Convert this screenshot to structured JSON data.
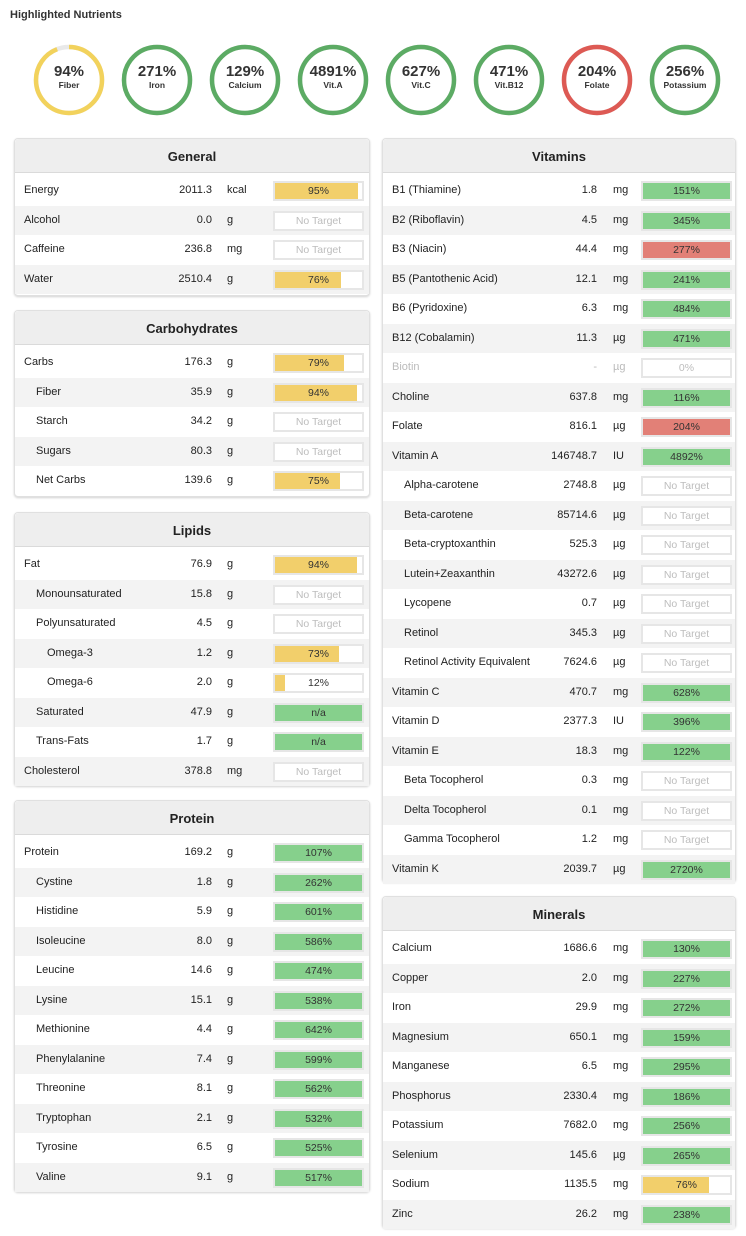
{
  "header": {
    "title": "Highlighted Nutrients"
  },
  "colors": {
    "yellow": "#f2cf6b",
    "green": "#86d08c",
    "red": "#e28077",
    "ring_yellow": "#f2d25c",
    "ring_green": "#5cab64",
    "ring_red": "#dd5a54"
  },
  "rings": [
    {
      "pct": "94%",
      "label": "Fiber",
      "level": 0.94,
      "color": "yellow"
    },
    {
      "pct": "271%",
      "label": "Iron",
      "level": 1,
      "color": "green"
    },
    {
      "pct": "129%",
      "label": "Calcium",
      "level": 1,
      "color": "green"
    },
    {
      "pct": "4891%",
      "label": "Vit.A",
      "level": 1,
      "color": "green"
    },
    {
      "pct": "627%",
      "label": "Vit.C",
      "level": 1,
      "color": "green"
    },
    {
      "pct": "471%",
      "label": "Vit.B12",
      "level": 1,
      "color": "green"
    },
    {
      "pct": "204%",
      "label": "Folate",
      "level": 1,
      "color": "red"
    },
    {
      "pct": "256%",
      "label": "Potassium",
      "level": 1,
      "color": "green"
    }
  ],
  "panels": {
    "general": {
      "title": "General",
      "rows": [
        {
          "name": "Energy",
          "value": "2011.3",
          "unit": "kcal",
          "bar": "95%",
          "level": 0.95,
          "color": "yellow"
        },
        {
          "name": "Alcohol",
          "value": "0.0",
          "unit": "g",
          "bar": "No Target",
          "level": 0,
          "color": "none"
        },
        {
          "name": "Caffeine",
          "value": "236.8",
          "unit": "mg",
          "bar": "No Target",
          "level": 0,
          "color": "none"
        },
        {
          "name": "Water",
          "value": "2510.4",
          "unit": "g",
          "bar": "76%",
          "level": 0.76,
          "color": "yellow"
        }
      ]
    },
    "carbohydrates": {
      "title": "Carbohydrates",
      "rows": [
        {
          "name": "Carbs",
          "value": "176.3",
          "unit": "g",
          "bar": "79%",
          "level": 0.79,
          "color": "yellow"
        },
        {
          "name": "Fiber",
          "value": "35.9",
          "unit": "g",
          "bar": "94%",
          "level": 0.94,
          "color": "yellow",
          "indent": 1
        },
        {
          "name": "Starch",
          "value": "34.2",
          "unit": "g",
          "bar": "No Target",
          "level": 0,
          "color": "none",
          "indent": 1
        },
        {
          "name": "Sugars",
          "value": "80.3",
          "unit": "g",
          "bar": "No Target",
          "level": 0,
          "color": "none",
          "indent": 1
        },
        {
          "name": "Net Carbs",
          "value": "139.6",
          "unit": "g",
          "bar": "75%",
          "level": 0.75,
          "color": "yellow",
          "indent": 1
        }
      ]
    },
    "lipids": {
      "title": "Lipids",
      "rows": [
        {
          "name": "Fat",
          "value": "76.9",
          "unit": "g",
          "bar": "94%",
          "level": 0.94,
          "color": "yellow"
        },
        {
          "name": "Monounsaturated",
          "value": "15.8",
          "unit": "g",
          "bar": "No Target",
          "level": 0,
          "color": "none",
          "indent": 1
        },
        {
          "name": "Polyunsaturated",
          "value": "4.5",
          "unit": "g",
          "bar": "No Target",
          "level": 0,
          "color": "none",
          "indent": 1
        },
        {
          "name": "Omega-3",
          "value": "1.2",
          "unit": "g",
          "bar": "73%",
          "level": 0.73,
          "color": "yellow",
          "indent": 2
        },
        {
          "name": "Omega-6",
          "value": "2.0",
          "unit": "g",
          "bar": "12%",
          "level": 0.12,
          "color": "yellow",
          "indent": 2
        },
        {
          "name": "Saturated",
          "value": "47.9",
          "unit": "g",
          "bar": "n/a",
          "level": 1,
          "color": "green",
          "indent": 1
        },
        {
          "name": "Trans-Fats",
          "value": "1.7",
          "unit": "g",
          "bar": "n/a",
          "level": 1,
          "color": "green",
          "indent": 1
        },
        {
          "name": "Cholesterol",
          "value": "378.8",
          "unit": "mg",
          "bar": "No Target",
          "level": 0,
          "color": "none"
        }
      ]
    },
    "protein": {
      "title": "Protein",
      "rows": [
        {
          "name": "Protein",
          "value": "169.2",
          "unit": "g",
          "bar": "107%",
          "level": 1,
          "color": "green"
        },
        {
          "name": "Cystine",
          "value": "1.8",
          "unit": "g",
          "bar": "262%",
          "level": 1,
          "color": "green",
          "indent": 1
        },
        {
          "name": "Histidine",
          "value": "5.9",
          "unit": "g",
          "bar": "601%",
          "level": 1,
          "color": "green",
          "indent": 1
        },
        {
          "name": "Isoleucine",
          "value": "8.0",
          "unit": "g",
          "bar": "586%",
          "level": 1,
          "color": "green",
          "indent": 1
        },
        {
          "name": "Leucine",
          "value": "14.6",
          "unit": "g",
          "bar": "474%",
          "level": 1,
          "color": "green",
          "indent": 1
        },
        {
          "name": "Lysine",
          "value": "15.1",
          "unit": "g",
          "bar": "538%",
          "level": 1,
          "color": "green",
          "indent": 1
        },
        {
          "name": "Methionine",
          "value": "4.4",
          "unit": "g",
          "bar": "642%",
          "level": 1,
          "color": "green",
          "indent": 1
        },
        {
          "name": "Phenylalanine",
          "value": "7.4",
          "unit": "g",
          "bar": "599%",
          "level": 1,
          "color": "green",
          "indent": 1
        },
        {
          "name": "Threonine",
          "value": "8.1",
          "unit": "g",
          "bar": "562%",
          "level": 1,
          "color": "green",
          "indent": 1
        },
        {
          "name": "Tryptophan",
          "value": "2.1",
          "unit": "g",
          "bar": "532%",
          "level": 1,
          "color": "green",
          "indent": 1
        },
        {
          "name": "Tyrosine",
          "value": "6.5",
          "unit": "g",
          "bar": "525%",
          "level": 1,
          "color": "green",
          "indent": 1
        },
        {
          "name": "Valine",
          "value": "9.1",
          "unit": "g",
          "bar": "517%",
          "level": 1,
          "color": "green",
          "indent": 1
        }
      ]
    },
    "vitamins": {
      "title": "Vitamins",
      "rows": [
        {
          "name": "B1 (Thiamine)",
          "value": "1.8",
          "unit": "mg",
          "bar": "151%",
          "level": 1,
          "color": "green"
        },
        {
          "name": "B2 (Riboflavin)",
          "value": "4.5",
          "unit": "mg",
          "bar": "345%",
          "level": 1,
          "color": "green"
        },
        {
          "name": "B3 (Niacin)",
          "value": "44.4",
          "unit": "mg",
          "bar": "277%",
          "level": 1,
          "color": "red"
        },
        {
          "name": "B5 (Pantothenic Acid)",
          "value": "12.1",
          "unit": "mg",
          "bar": "241%",
          "level": 1,
          "color": "green"
        },
        {
          "name": "B6 (Pyridoxine)",
          "value": "6.3",
          "unit": "mg",
          "bar": "484%",
          "level": 1,
          "color": "green"
        },
        {
          "name": "B12 (Cobalamin)",
          "value": "11.3",
          "unit": "µg",
          "bar": "471%",
          "level": 1,
          "color": "green"
        },
        {
          "name": "Biotin",
          "value": "-",
          "unit": "µg",
          "bar": "0%",
          "level": 0,
          "color": "none",
          "dim": true
        },
        {
          "name": "Choline",
          "value": "637.8",
          "unit": "mg",
          "bar": "116%",
          "level": 1,
          "color": "green"
        },
        {
          "name": "Folate",
          "value": "816.1",
          "unit": "µg",
          "bar": "204%",
          "level": 1,
          "color": "red"
        },
        {
          "name": "Vitamin A",
          "value": "146748.7",
          "unit": "IU",
          "bar": "4892%",
          "level": 1,
          "color": "green"
        },
        {
          "name": "Alpha-carotene",
          "value": "2748.8",
          "unit": "µg",
          "bar": "No Target",
          "level": 0,
          "color": "none",
          "indent": 1
        },
        {
          "name": "Beta-carotene",
          "value": "85714.6",
          "unit": "µg",
          "bar": "No Target",
          "level": 0,
          "color": "none",
          "indent": 1
        },
        {
          "name": "Beta-cryptoxanthin",
          "value": "525.3",
          "unit": "µg",
          "bar": "No Target",
          "level": 0,
          "color": "none",
          "indent": 1
        },
        {
          "name": "Lutein+Zeaxanthin",
          "value": "43272.6",
          "unit": "µg",
          "bar": "No Target",
          "level": 0,
          "color": "none",
          "indent": 1
        },
        {
          "name": "Lycopene",
          "value": "0.7",
          "unit": "µg",
          "bar": "No Target",
          "level": 0,
          "color": "none",
          "indent": 1
        },
        {
          "name": "Retinol",
          "value": "345.3",
          "unit": "µg",
          "bar": "No Target",
          "level": 0,
          "color": "none",
          "indent": 1
        },
        {
          "name": "Retinol Activity Equivalent",
          "value": "7624.6",
          "unit": "µg",
          "bar": "No Target",
          "level": 0,
          "color": "none",
          "indent": 1
        },
        {
          "name": "Vitamin C",
          "value": "470.7",
          "unit": "mg",
          "bar": "628%",
          "level": 1,
          "color": "green"
        },
        {
          "name": "Vitamin D",
          "value": "2377.3",
          "unit": "IU",
          "bar": "396%",
          "level": 1,
          "color": "green"
        },
        {
          "name": "Vitamin E",
          "value": "18.3",
          "unit": "mg",
          "bar": "122%",
          "level": 1,
          "color": "green"
        },
        {
          "name": "Beta Tocopherol",
          "value": "0.3",
          "unit": "mg",
          "bar": "No Target",
          "level": 0,
          "color": "none",
          "indent": 1
        },
        {
          "name": "Delta Tocopherol",
          "value": "0.1",
          "unit": "mg",
          "bar": "No Target",
          "level": 0,
          "color": "none",
          "indent": 1
        },
        {
          "name": "Gamma Tocopherol",
          "value": "1.2",
          "unit": "mg",
          "bar": "No Target",
          "level": 0,
          "color": "none",
          "indent": 1
        },
        {
          "name": "Vitamin K",
          "value": "2039.7",
          "unit": "µg",
          "bar": "2720%",
          "level": 1,
          "color": "green"
        }
      ]
    },
    "minerals": {
      "title": "Minerals",
      "rows": [
        {
          "name": "Calcium",
          "value": "1686.6",
          "unit": "mg",
          "bar": "130%",
          "level": 1,
          "color": "green"
        },
        {
          "name": "Copper",
          "value": "2.0",
          "unit": "mg",
          "bar": "227%",
          "level": 1,
          "color": "green"
        },
        {
          "name": "Iron",
          "value": "29.9",
          "unit": "mg",
          "bar": "272%",
          "level": 1,
          "color": "green"
        },
        {
          "name": "Magnesium",
          "value": "650.1",
          "unit": "mg",
          "bar": "159%",
          "level": 1,
          "color": "green"
        },
        {
          "name": "Manganese",
          "value": "6.5",
          "unit": "mg",
          "bar": "295%",
          "level": 1,
          "color": "green"
        },
        {
          "name": "Phosphorus",
          "value": "2330.4",
          "unit": "mg",
          "bar": "186%",
          "level": 1,
          "color": "green"
        },
        {
          "name": "Potassium",
          "value": "7682.0",
          "unit": "mg",
          "bar": "256%",
          "level": 1,
          "color": "green"
        },
        {
          "name": "Selenium",
          "value": "145.6",
          "unit": "µg",
          "bar": "265%",
          "level": 1,
          "color": "green"
        },
        {
          "name": "Sodium",
          "value": "1135.5",
          "unit": "mg",
          "bar": "76%",
          "level": 0.76,
          "color": "yellow"
        },
        {
          "name": "Zinc",
          "value": "26.2",
          "unit": "mg",
          "bar": "238%",
          "level": 1,
          "color": "green"
        }
      ]
    }
  }
}
